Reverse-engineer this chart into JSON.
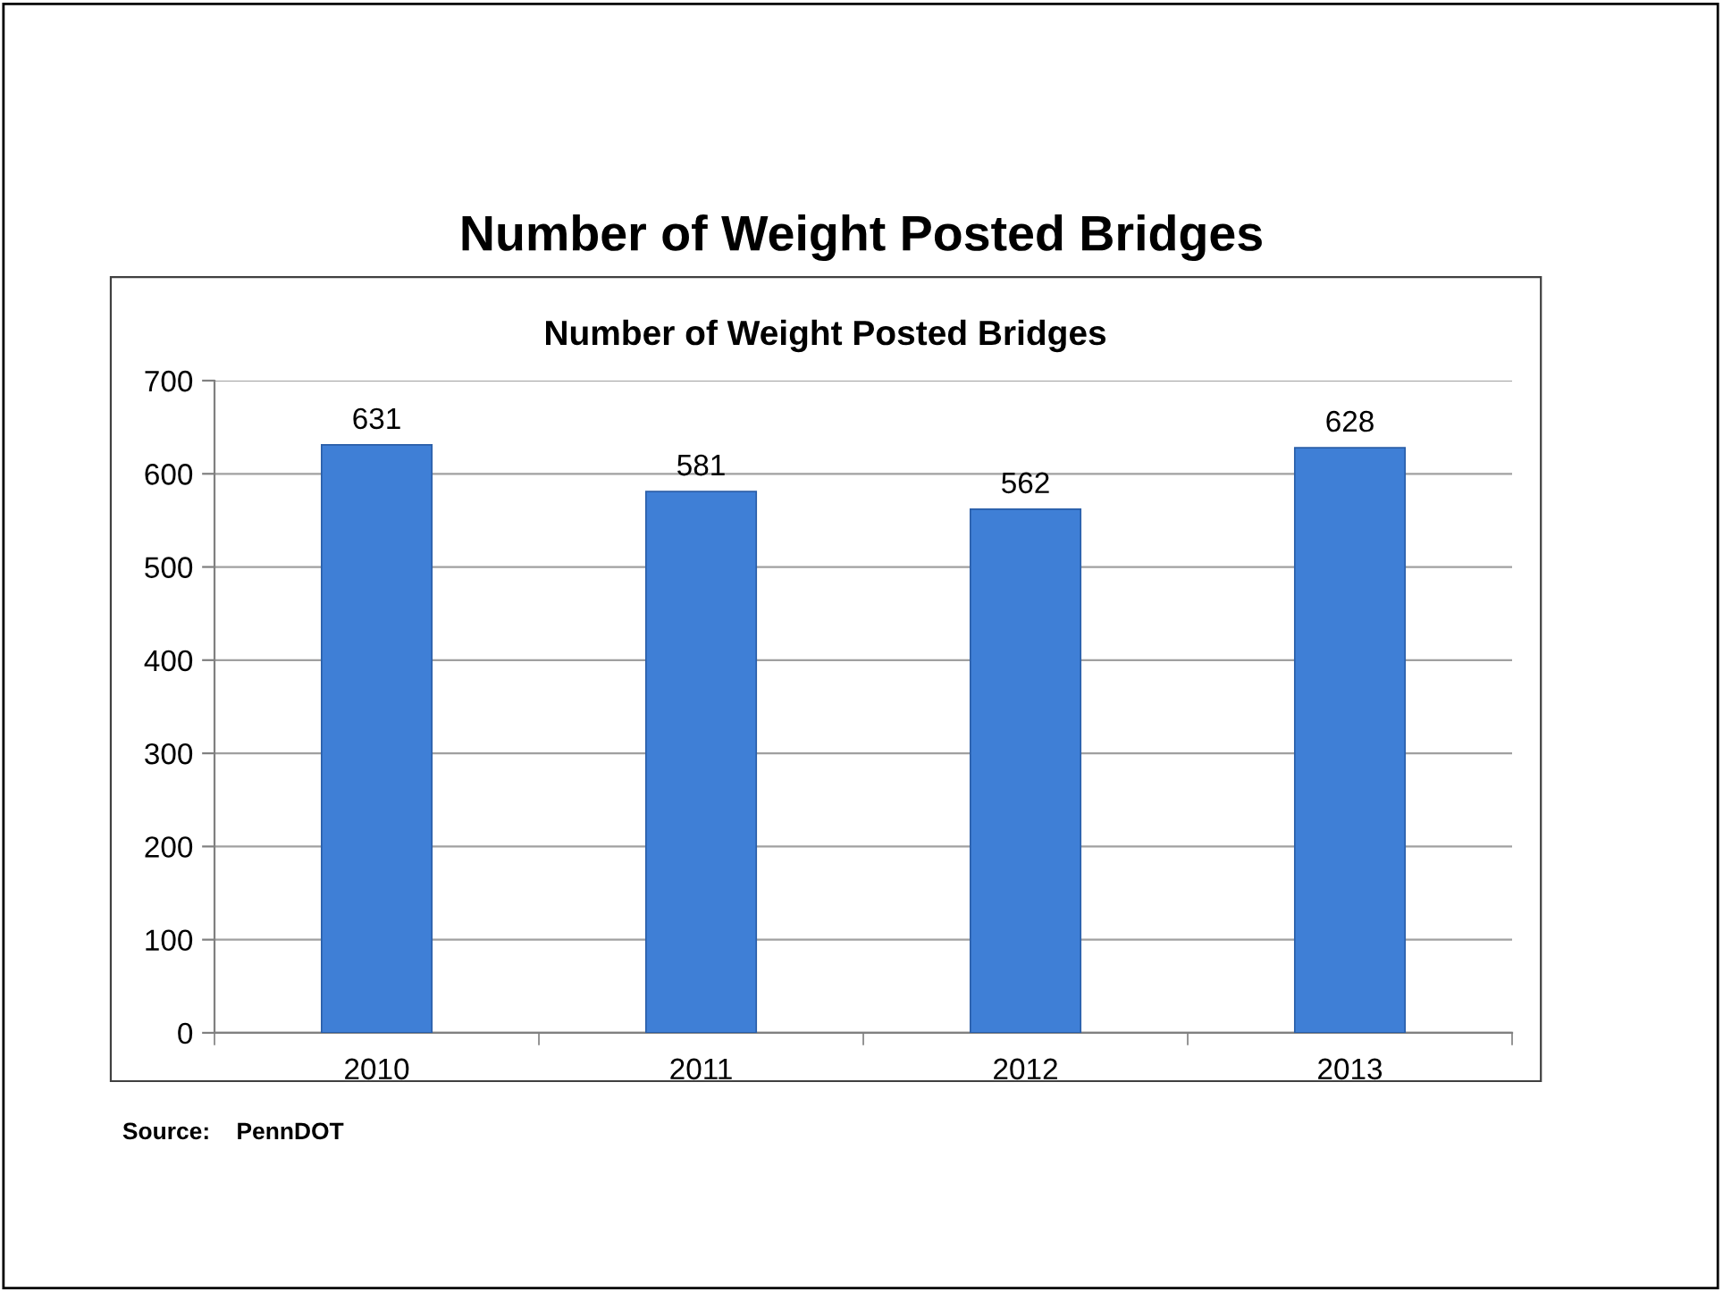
{
  "chart_data": {
    "type": "bar",
    "title": "Number of Weight Posted Bridges",
    "subtitle": "Number of Weight Posted Bridges",
    "categories": [
      "2010",
      "2011",
      "2012",
      "2013"
    ],
    "values": [
      631,
      581,
      562,
      628
    ],
    "color": "#3f7fd6",
    "ylim": [
      0,
      700
    ],
    "yticks": [
      0,
      100,
      200,
      300,
      400,
      500,
      600,
      700
    ],
    "grid": "y",
    "data_labels": true,
    "annotations": [
      "Source:    PennDOT"
    ]
  }
}
